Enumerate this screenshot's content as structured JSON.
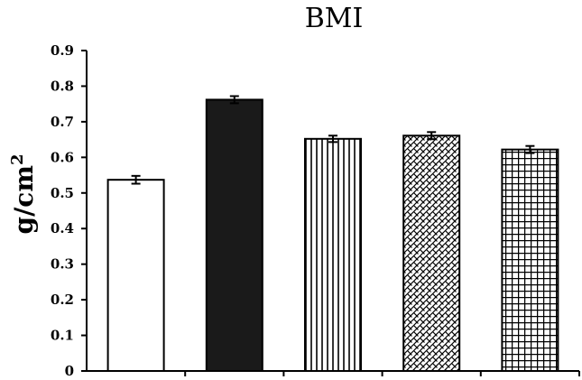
{
  "chart_data": {
    "type": "bar",
    "title": "BMI",
    "ylabel_base": "g/cm",
    "ylabel_sup": "2",
    "xlabel": "",
    "ylim": [
      0,
      0.9
    ],
    "yticks": [
      0,
      0.1,
      0.2,
      0.3,
      0.4,
      0.5,
      0.6,
      0.7,
      0.8,
      0.9
    ],
    "ytick_labels": [
      "0",
      "0.1",
      "0.2",
      "0.3",
      "0.4",
      "0.5",
      "0.6",
      "0.7",
      "0.8",
      "0.9"
    ],
    "categories": [
      "",
      "",
      "",
      "",
      ""
    ],
    "values": [
      0.537,
      0.762,
      0.652,
      0.661,
      0.622
    ],
    "errors": [
      0.011,
      0.01,
      0.009,
      0.01,
      0.01
    ],
    "fills": [
      "white",
      "black",
      "vertical-stripes",
      "dots",
      "grid"
    ],
    "grid": false,
    "legend": "none"
  }
}
